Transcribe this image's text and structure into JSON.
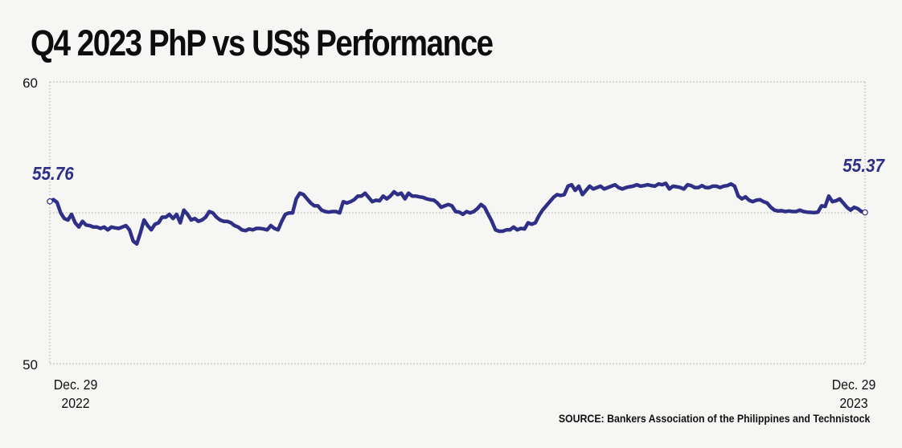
{
  "title": "Q4 2023 PhP vs US$ Performance",
  "source": "SOURCE: Bankers Association of the Philippines and Technistock",
  "colors": {
    "line": "#2f2f87",
    "grid": "#a9a9a9",
    "text": "#111111",
    "background": "#f6f6f4"
  },
  "chart_data": {
    "type": "line",
    "title": "Q4 2023 PhP vs US$ Performance",
    "xlabel": "",
    "ylabel": "",
    "ylim": [
      50,
      60
    ],
    "y_ticks": [
      {
        "value": 60,
        "label": "60"
      },
      {
        "value": 50,
        "label": "50"
      }
    ],
    "x_ticks": [
      {
        "line1": "Dec. 29",
        "line2": "2022",
        "position": "start"
      },
      {
        "line1": "Dec. 29",
        "line2": "2023",
        "position": "end"
      }
    ],
    "grid": true,
    "annotations": [
      {
        "label": "55.76",
        "value": 55.76,
        "at": "start"
      },
      {
        "label": "55.37",
        "value": 55.37,
        "at": "end"
      }
    ],
    "series": [
      {
        "values": [
          55.76,
          55.82,
          55.72,
          55.35,
          55.15,
          55.1,
          55.3,
          55.0,
          54.85,
          55.05,
          54.92,
          54.9,
          54.85,
          54.85,
          54.8,
          54.85,
          54.75,
          54.85,
          54.82,
          54.8,
          54.85,
          54.9,
          54.75,
          54.35,
          54.25,
          54.65,
          55.1,
          54.9,
          54.75,
          54.95,
          55.0,
          55.2,
          55.2,
          55.3,
          55.15,
          55.3,
          55.0,
          55.45,
          55.3,
          55.1,
          55.15,
          55.05,
          55.1,
          55.2,
          55.4,
          55.35,
          55.2,
          55.1,
          55.05,
          55.05,
          55.0,
          54.9,
          54.85,
          54.75,
          54.72,
          54.78,
          54.75,
          54.8,
          54.8,
          54.78,
          54.75,
          54.9,
          54.8,
          54.75,
          55.05,
          55.3,
          55.35,
          55.35,
          55.85,
          56.05,
          56.0,
          55.85,
          55.7,
          55.6,
          55.6,
          55.45,
          55.4,
          55.38,
          55.4,
          55.4,
          55.35,
          55.75,
          55.7,
          55.75,
          55.82,
          55.95,
          55.95,
          56.05,
          55.9,
          55.75,
          55.8,
          55.78,
          55.95,
          55.85,
          55.95,
          56.1,
          56.0,
          56.05,
          55.85,
          56.05,
          55.95,
          55.95,
          55.92,
          55.9,
          55.85,
          55.82,
          55.8,
          55.7,
          55.55,
          55.6,
          55.65,
          55.6,
          55.4,
          55.38,
          55.3,
          55.4,
          55.35,
          55.4,
          55.5,
          55.65,
          55.55,
          55.3,
          55.05,
          54.75,
          54.7,
          54.7,
          54.75,
          54.75,
          54.85,
          54.75,
          54.8,
          54.78,
          55.0,
          54.95,
          55.0,
          55.25,
          55.45,
          55.6,
          55.75,
          55.9,
          56.0,
          55.97,
          56.0,
          56.3,
          56.35,
          56.15,
          56.3,
          56.0,
          56.15,
          56.3,
          56.2,
          56.25,
          56.3,
          56.2,
          56.25,
          56.3,
          56.35,
          56.25,
          56.2,
          56.25,
          56.28,
          56.3,
          56.35,
          56.3,
          56.32,
          56.35,
          56.32,
          56.3,
          56.38,
          56.35,
          56.4,
          56.2,
          56.3,
          56.28,
          56.25,
          56.2,
          56.35,
          56.32,
          56.25,
          56.25,
          56.32,
          56.25,
          56.25,
          56.3,
          56.3,
          56.25,
          56.3,
          56.32,
          56.38,
          56.3,
          55.95,
          55.85,
          55.92,
          55.8,
          55.75,
          55.8,
          55.82,
          55.75,
          55.7,
          55.55,
          55.45,
          55.42,
          55.43,
          55.4,
          55.42,
          55.4,
          55.4,
          55.45,
          55.4,
          55.38,
          55.37,
          55.36,
          55.38,
          55.6,
          55.58,
          55.95,
          55.75,
          55.78,
          55.85,
          55.7,
          55.55,
          55.45,
          55.55,
          55.5,
          55.4,
          55.37
        ]
      }
    ]
  }
}
